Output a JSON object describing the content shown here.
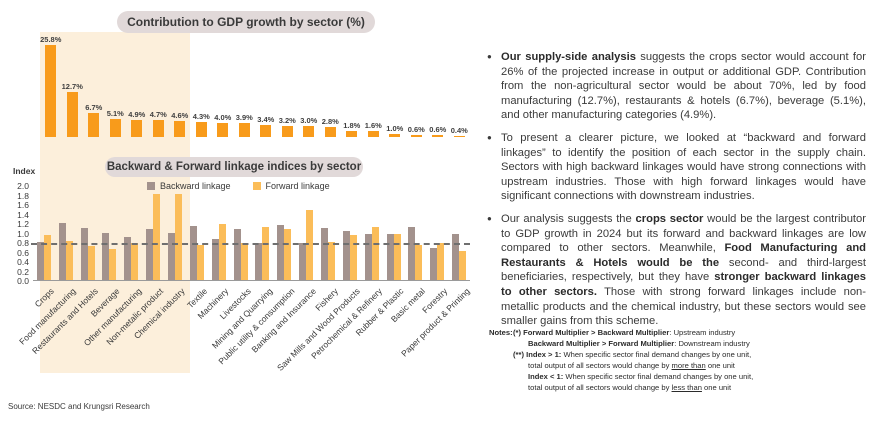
{
  "source": "Source: NESDC and Krungsri Research",
  "colors": {
    "gdp_bar": "#F89B1B",
    "backward_bar": "#A3928D",
    "forward_bar": "#FBBD59",
    "highlight_bg": "#FCEFDB",
    "title_pill_bg": "#E1D9D9",
    "reference_line": "#6F6F6F"
  },
  "chart_data": [
    {
      "type": "bar",
      "title": "Contribution to GDP growth by sector (%)",
      "categories": [
        "Crops",
        "Food manufacturing",
        "Restaurants and Hotels",
        "Beverage",
        "Other manufacturing",
        "Non-metalic product",
        "Chemical industry",
        "Textile",
        "Machinery",
        "Livestocks",
        "Mining and Quarrying",
        "Public utility & consumption",
        "Banking and Insurance",
        "Fishery",
        "Saw Mills and Wood Products",
        "Petrochemical & Refinery",
        "Rubber & Plastic",
        "Basic metal",
        "Forestry",
        "Paper product & Printing"
      ],
      "values": [
        25.8,
        12.7,
        6.7,
        5.1,
        4.9,
        4.7,
        4.6,
        4.3,
        4.0,
        3.9,
        3.4,
        3.2,
        3.0,
        2.8,
        1.8,
        1.6,
        1.0,
        0.6,
        0.6,
        0.4
      ],
      "labels": [
        "25.8%",
        "12.7%",
        "6.7%",
        "5.1%",
        "4.9%",
        "4.7%",
        "4.6%",
        "4.3%",
        "4.0%",
        "3.9%",
        "3.4%",
        "3.2%",
        "3.0%",
        "2.8%",
        "1.8%",
        "1.6%",
        "1.0%",
        "0.6%",
        "0.6%",
        "0.4%"
      ],
      "highlighted_first_n": 7,
      "grid": false
    },
    {
      "type": "bar",
      "title": "Backward & Forward linkage indices by sector",
      "ylabel": "Index",
      "ylim": [
        0,
        2.0
      ],
      "yticks": [
        "2.0",
        "1.8",
        "1.6",
        "1.4",
        "1.2",
        "1.0",
        "0.8",
        "0.6",
        "0.4",
        "0.2",
        "0.0"
      ],
      "reference_line": 0.8,
      "legend_position": "top",
      "grid": false,
      "categories": [
        "Crops",
        "Food manufacturing",
        "Restaurants and Hotels",
        "Beverage",
        "Other manufacturing",
        "Non-metalic product",
        "Chemical industry",
        "Textile",
        "Machinery",
        "Livestocks",
        "Mining and Quarrying",
        "Public utility & consumption",
        "Banking and Insurance",
        "Fishery",
        "Saw Mills and Wood Products",
        "Petrochemical & Refinery",
        "Rubber & Plastic",
        "Basic metal",
        "Forestry",
        "Paper product & Printing"
      ],
      "series": [
        {
          "name": "Backward linkage",
          "color": "#A3928D",
          "values": [
            0.8,
            1.2,
            1.1,
            1.0,
            0.9,
            1.08,
            1.0,
            1.13,
            0.86,
            1.07,
            0.79,
            1.16,
            0.78,
            1.09,
            1.04,
            0.96,
            0.97,
            1.11,
            0.68,
            0.98
          ]
        },
        {
          "name": "Forward linkage",
          "color": "#FBBD59",
          "values": [
            0.95,
            0.82,
            0.72,
            0.66,
            0.79,
            1.81,
            1.81,
            0.74,
            1.17,
            0.79,
            1.12,
            1.07,
            1.47,
            0.81,
            0.95,
            1.11,
            0.97,
            0.74,
            0.77,
            0.61
          ]
        }
      ]
    }
  ],
  "bullets": [
    {
      "segments": [
        {
          "t": "Our supply-side analysis",
          "b": true
        },
        {
          "t": " suggests the crops sector would account for 26% of the projected increase in output or additional GDP. Contribution from the non-agricultural sector would be about 70%, led by food manufacturing (12.7%), restaurants & hotels (6.7%), beverage (5.1%), and other manufacturing categories (4.9%)."
        }
      ]
    },
    {
      "segments": [
        {
          "t": "To present a clearer picture, we looked at “backward and forward linkages” to identify the position of each sector in the supply chain. Sectors with high backward linkages would have strong connections with upstream industries. Those with high forward linkages would have significant connections with downstream industries."
        }
      ]
    },
    {
      "segments": [
        {
          "t": "Our analysis suggests the "
        },
        {
          "t": "crops sector",
          "b": true
        },
        {
          "t": " would be the largest contributor to GDP growth in 2024 but its forward and backward linkages are low compared to other sectors. Meanwhile, "
        },
        {
          "t": "Food Manufacturing and Restaurants & Hotels would be the",
          "b": true
        },
        {
          "t": " second- and third-largest beneficiaries, respectively, but they have "
        },
        {
          "t": "stronger backward linkages to other sectors.",
          "b": true
        },
        {
          "t": " Those with strong forward linkages include non-metallic products and the chemical industry, but these sectors would see smaller gains from this scheme."
        }
      ]
    }
  ],
  "notes": {
    "label": "Notes:",
    "lines": [
      {
        "indent": 0,
        "segments": [
          {
            "t": "(*) Forward Multiplier > Backward Multiplier",
            "b": true
          },
          {
            "t": ": Upstream industry"
          }
        ]
      },
      {
        "indent": 1,
        "segments": [
          {
            "t": "Backward Multiplier > Forward Multiplier",
            "b": true
          },
          {
            "t": ": Downstream industry"
          }
        ]
      },
      {
        "indent": 0,
        "segments": [
          {
            "t": "(**) Index > 1:",
            "b": true
          },
          {
            "t": " When specific sector final demand changes by one unit,"
          }
        ]
      },
      {
        "indent": 1,
        "segments": [
          {
            "t": "total output of all sectors would change by "
          },
          {
            "t": "more than",
            "u": true
          },
          {
            "t": " one unit"
          }
        ]
      },
      {
        "indent": 1,
        "segments": [
          {
            "t": "Index < 1:",
            "b": true
          },
          {
            "t": " When specific sector final demand changes by one unit,"
          }
        ]
      },
      {
        "indent": 1,
        "segments": [
          {
            "t": "total output of all sectors would change by "
          },
          {
            "t": "less than",
            "u": true
          },
          {
            "t": " one unit"
          }
        ]
      }
    ]
  }
}
